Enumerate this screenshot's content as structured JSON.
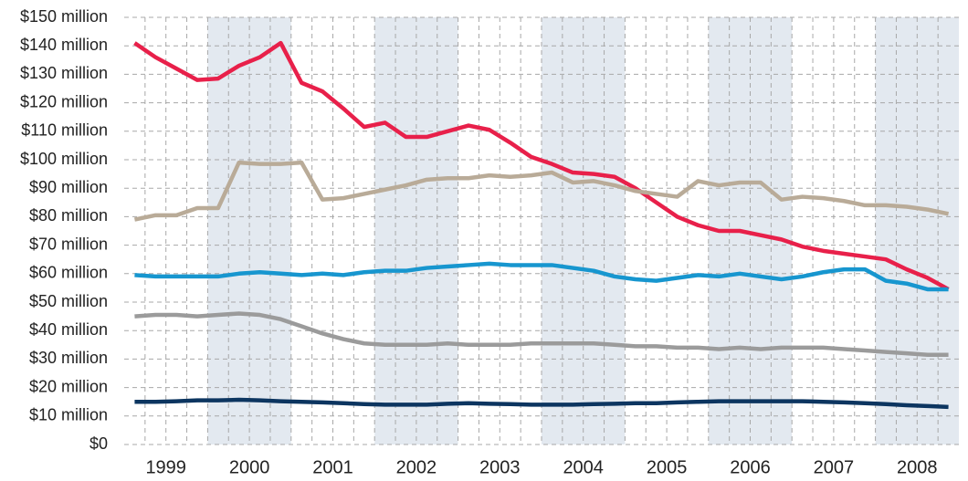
{
  "chart_data": {
    "type": "line",
    "categories": [
      "1999",
      null,
      null,
      null,
      "2000",
      null,
      null,
      null,
      "2001",
      null,
      null,
      null,
      "2002",
      null,
      null,
      null,
      "2003",
      null,
      null,
      null,
      "2004",
      null,
      null,
      null,
      "2005",
      null,
      null,
      null,
      "2006",
      null,
      null,
      null,
      "2007",
      null,
      null,
      null,
      "2008",
      null,
      null,
      null
    ],
    "series": [
      {
        "color": "#e8204a",
        "values": [
          141,
          136,
          132,
          128,
          128.5,
          133,
          136,
          141,
          127,
          124,
          118,
          111.5,
          113,
          108,
          108,
          110,
          112,
          110.5,
          106,
          101,
          98.5,
          95.5,
          95,
          94,
          90,
          85,
          80,
          77,
          75,
          75,
          73.5,
          72,
          69.5,
          68,
          67,
          66,
          65,
          61.5,
          58.5,
          54.5
        ]
      },
      {
        "color": "#b9ab98",
        "values": [
          79,
          80.5,
          80.5,
          83,
          83,
          99,
          98.5,
          98.5,
          99,
          86,
          86.5,
          88,
          89.5,
          91,
          93,
          93.5,
          93.5,
          94.5,
          94,
          94.5,
          95.5,
          92,
          92.5,
          91,
          89,
          88,
          87,
          92.5,
          91,
          92,
          92,
          86,
          87,
          86.5,
          85.5,
          84,
          84,
          83.5,
          82.5,
          81
        ]
      },
      {
        "color": "#1796cf",
        "values": [
          59.5,
          59,
          59,
          59,
          59,
          60,
          60.5,
          60,
          59.5,
          60,
          59.5,
          60.5,
          61,
          61,
          62,
          62.5,
          63,
          63.5,
          63,
          63,
          63,
          62,
          61,
          59,
          58,
          57.5,
          58.5,
          59.5,
          59,
          60,
          59,
          58,
          59,
          60.5,
          61.5,
          61.5,
          57.5,
          56.5,
          54.5,
          54.5
        ]
      },
      {
        "color": "#9b9b9b",
        "values": [
          45,
          45.5,
          45.5,
          45,
          45.5,
          46,
          45.5,
          44,
          41.5,
          39,
          37,
          35.5,
          35,
          35,
          35,
          35.5,
          35,
          35,
          35,
          35.5,
          35.5,
          35.5,
          35.5,
          35,
          34.5,
          34.5,
          34,
          34,
          33.5,
          34,
          33.5,
          34,
          34,
          34,
          33.5,
          33,
          32.5,
          32,
          31.5,
          31.5
        ]
      },
      {
        "color": "#0c3560",
        "values": [
          15,
          15,
          15.2,
          15.5,
          15.5,
          15.7,
          15.5,
          15.2,
          15,
          14.8,
          14.5,
          14.2,
          14,
          14,
          14,
          14.3,
          14.5,
          14.3,
          14.2,
          14,
          14,
          14,
          14.2,
          14.3,
          14.5,
          14.5,
          14.8,
          15,
          15.2,
          15.2,
          15.2,
          15.2,
          15.2,
          15,
          14.8,
          14.5,
          14.2,
          13.8,
          13.5,
          13.2
        ]
      }
    ],
    "ylim": [
      0,
      150
    ],
    "yticks": [
      {
        "value": 0,
        "label": "$0"
      },
      {
        "value": 10,
        "label": "$10 million"
      },
      {
        "value": 20,
        "label": "$20 million"
      },
      {
        "value": 30,
        "label": "$30 million"
      },
      {
        "value": 40,
        "label": "$40 million"
      },
      {
        "value": 50,
        "label": "$50 million"
      },
      {
        "value": 60,
        "label": "$60 million"
      },
      {
        "value": 70,
        "label": "$70 million"
      },
      {
        "value": 80,
        "label": "$80 million"
      },
      {
        "value": 90,
        "label": "$90 million"
      },
      {
        "value": 100,
        "label": "$100 million"
      },
      {
        "value": 110,
        "label": "$110 million"
      },
      {
        "value": 120,
        "label": "$120 million"
      },
      {
        "value": 130,
        "label": "$130 million"
      },
      {
        "value": 140,
        "label": "$140 million"
      },
      {
        "value": 150,
        "label": "$150 million"
      }
    ],
    "grid": true
  }
}
